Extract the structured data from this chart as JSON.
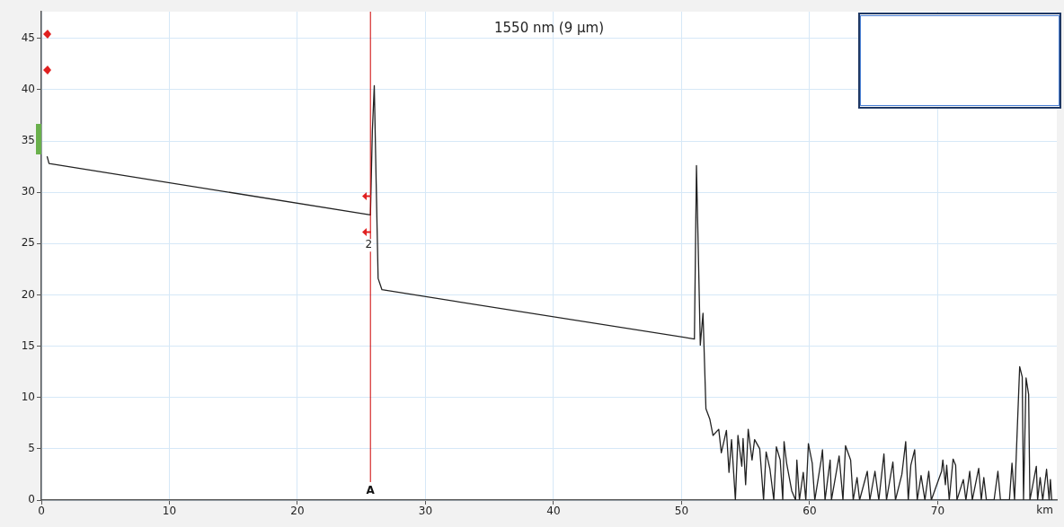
{
  "chart_data": {
    "type": "line",
    "title": "1550 nm (9 µm)",
    "xlabel": "km",
    "xlim": [
      0,
      79.3
    ],
    "xticks": [
      0,
      10,
      20,
      30,
      40,
      50,
      60,
      70
    ],
    "ylim": [
      0,
      47.6
    ],
    "yticks": [
      0,
      5,
      10,
      15,
      20,
      25,
      30,
      35,
      40,
      45
    ],
    "grid": true,
    "legend": false,
    "marker": "none",
    "line_style": "solid",
    "ref_lines": [
      {
        "axis": "x",
        "value": 25.7,
        "label": "A",
        "color": "#cc0000",
        "line_style": "solid"
      }
    ],
    "annotations": [
      {
        "text": "2",
        "x": 25.7,
        "y": 25
      }
    ],
    "series": [
      {
        "color": "#222222",
        "x": [
          0.45,
          0.6,
          25.7,
          25.85,
          26.0,
          26.15,
          26.3,
          26.6,
          51.0,
          51.16,
          51.46,
          51.67,
          51.9,
          52.2,
          52.45,
          52.9,
          53.1,
          53.5,
          53.7,
          53.9,
          54.2,
          54.4,
          54.7,
          54.8,
          55.0,
          55.2,
          55.5,
          55.7,
          56.1,
          56.4,
          56.6,
          56.9,
          57.2,
          57.4,
          57.7,
          57.9,
          58.0,
          58.2,
          58.6,
          58.9,
          59.0,
          59.2,
          59.5,
          59.7,
          59.9,
          60.2,
          60.4,
          60.9,
          61.0,
          61.2,
          61.6,
          61.7,
          62.3,
          62.6,
          62.8,
          63.2,
          63.4,
          63.7,
          63.9,
          64.5,
          64.7,
          65.1,
          65.4,
          65.8,
          66.0,
          66.5,
          66.7,
          67.2,
          67.5,
          67.7,
          67.9,
          68.2,
          68.4,
          68.7,
          69.0,
          69.3,
          69.5,
          70.3,
          70.4,
          70.6,
          70.7,
          70.9,
          71.2,
          71.4,
          71.5,
          72.0,
          72.2,
          72.5,
          72.7,
          73.2,
          73.4,
          73.6,
          73.8,
          74.4,
          74.7,
          74.9,
          75.6,
          75.8,
          76.0,
          76.4,
          76.6,
          76.7,
          76.9,
          77.1,
          77.2,
          77.7,
          77.8,
          78.0,
          78.2,
          78.5,
          78.7,
          78.8,
          78.9
        ],
        "values": [
          33.5,
          32.8,
          27.8,
          36,
          40.4,
          30.8,
          21.6,
          20.5,
          15.7,
          32.6,
          15.1,
          18.2,
          8.9,
          7.9,
          6.3,
          6.9,
          4.6,
          6.8,
          2.7,
          5.9,
          0,
          6.3,
          3.3,
          6.0,
          1.5,
          6.9,
          3.9,
          5.9,
          5.0,
          0,
          4.7,
          3.0,
          0,
          5.2,
          3.9,
          0,
          5.7,
          3.6,
          0.9,
          0,
          3.9,
          0,
          2.7,
          0,
          5.5,
          3.6,
          0,
          3.9,
          4.9,
          0,
          3.9,
          0,
          4.3,
          0,
          5.3,
          3.9,
          0,
          2.2,
          0,
          2.8,
          0,
          2.8,
          0,
          4.5,
          0,
          3.7,
          0,
          2.5,
          5.7,
          0,
          3.4,
          4.9,
          0,
          2.4,
          0,
          2.8,
          0,
          2.8,
          3.9,
          1.5,
          3.4,
          0,
          4.0,
          3.4,
          0,
          2.0,
          0,
          2.8,
          0,
          3.1,
          0,
          2.2,
          0,
          0,
          2.8,
          0,
          0,
          3.6,
          0,
          13.0,
          12.0,
          0,
          11.9,
          10.3,
          0,
          3.3,
          0,
          2.2,
          0,
          3.0,
          0,
          2.0,
          0
        ]
      }
    ]
  }
}
